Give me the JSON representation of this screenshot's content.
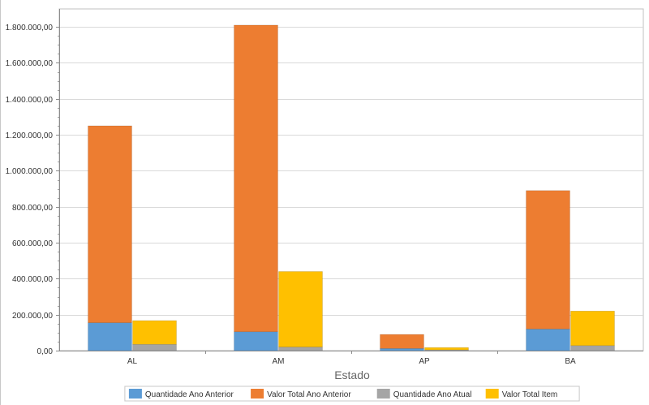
{
  "chart_data": {
    "type": "bar",
    "stacked": true,
    "title": "",
    "xlabel": "Estado",
    "ylabel": "",
    "ylim": [
      0,
      1900000
    ],
    "yticks": [
      0,
      200000,
      400000,
      600000,
      800000,
      1000000,
      1200000,
      1400000,
      1600000,
      1800000
    ],
    "ytick_labels": [
      "0,00",
      "200.000,00",
      "400.000,00",
      "600.000,00",
      "800.000,00",
      "1.000.000,00",
      "1.200.000,00",
      "1.400.000,00",
      "1.600.000,00",
      "1.800.000,00"
    ],
    "categories": [
      "AL",
      "AM",
      "AP",
      "BA"
    ],
    "legend_position": "bottom-center",
    "stacks": [
      {
        "name": "Ano Anterior",
        "series": [
          {
            "name": "Quantidade Ano Anterior",
            "color": "#5b9bd5",
            "values": [
              155000,
              105000,
              12000,
              120000
            ]
          },
          {
            "name": "Valor Total Ano Anterior",
            "color": "#ed7d31",
            "values": [
              1095000,
              1705000,
              78000,
              770000
            ]
          }
        ]
      },
      {
        "name": "Ano Atual",
        "series": [
          {
            "name": "Quantidade Ano Atual",
            "color": "#a5a5a5",
            "values": [
              35000,
              20000,
              4000,
              28000
            ]
          },
          {
            "name": "Valor Total Item",
            "color": "#ffc000",
            "values": [
              132000,
              420000,
              13000,
              192000
            ]
          }
        ]
      }
    ],
    "legend": [
      {
        "label": "Quantidade Ano Anterior",
        "color": "#5b9bd5"
      },
      {
        "label": "Valor Total Ano Anterior",
        "color": "#ed7d31"
      },
      {
        "label": "Quantidade Ano Atual",
        "color": "#a5a5a5"
      },
      {
        "label": "Valor Total Item",
        "color": "#ffc000"
      }
    ]
  }
}
